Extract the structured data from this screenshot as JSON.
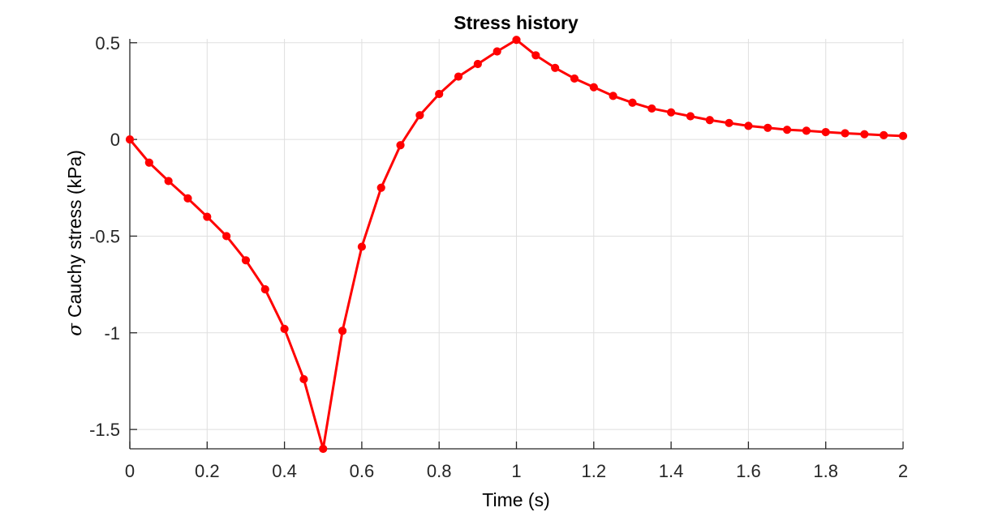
{
  "chart_data": {
    "type": "line",
    "title": "Stress history",
    "xlabel": "Time (s)",
    "ylabel_symbol": "σ",
    "ylabel": "Cauchy stress (kPa)",
    "xlim": [
      0,
      2
    ],
    "ylim": [
      -1.6,
      0.52
    ],
    "xticks": [
      0,
      0.2,
      0.4,
      0.6,
      0.8,
      1,
      1.2,
      1.4,
      1.6,
      1.8,
      2
    ],
    "xtick_labels": [
      "0",
      "0.2",
      "0.4",
      "0.6",
      "0.8",
      "1",
      "1.2",
      "1.4",
      "1.6",
      "1.8",
      "2"
    ],
    "yticks": [
      -1.5,
      -1,
      -0.5,
      0,
      0.5
    ],
    "ytick_labels": [
      "-1.5",
      "-1",
      "-0.5",
      "0",
      "0.5"
    ],
    "grid": true,
    "series": [
      {
        "color": "#ff0000",
        "marker": "circle",
        "x": [
          0,
          0.05,
          0.1,
          0.15,
          0.2,
          0.25,
          0.3,
          0.35,
          0.4,
          0.45,
          0.5,
          0.55,
          0.6,
          0.65,
          0.7,
          0.75,
          0.8,
          0.85,
          0.9,
          0.95,
          1,
          1.05,
          1.1,
          1.15,
          1.2,
          1.25,
          1.3,
          1.35,
          1.4,
          1.45,
          1.5,
          1.55,
          1.6,
          1.65,
          1.7,
          1.75,
          1.8,
          1.85,
          1.9,
          1.95,
          2
        ],
        "y": [
          0,
          -0.12,
          -0.215,
          -0.305,
          -0.4,
          -0.5,
          -0.625,
          -0.775,
          -0.98,
          -1.24,
          -1.6,
          -0.99,
          -0.555,
          -0.25,
          -0.03,
          0.125,
          0.235,
          0.325,
          0.39,
          0.455,
          0.515,
          0.435,
          0.37,
          0.315,
          0.27,
          0.225,
          0.19,
          0.16,
          0.14,
          0.12,
          0.1,
          0.085,
          0.07,
          0.06,
          0.05,
          0.045,
          0.038,
          0.032,
          0.027,
          0.022,
          0.018
        ]
      }
    ]
  }
}
